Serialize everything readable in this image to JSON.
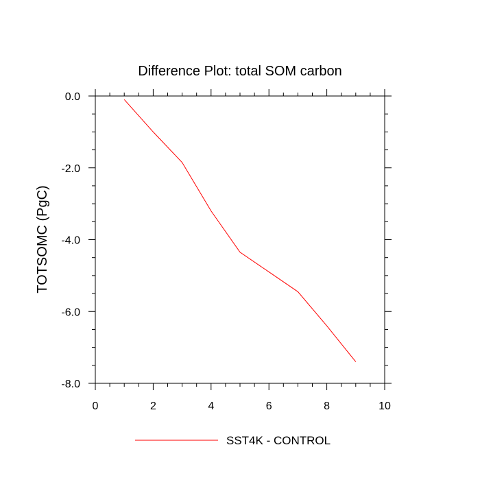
{
  "chart_data": {
    "type": "line",
    "title": "Difference Plot: total SOM carbon",
    "xlabel": "",
    "ylabel": "TOTSOMC  (PgC)",
    "xlim": [
      0,
      10
    ],
    "ylim": [
      -8.0,
      0.0
    ],
    "x_ticks": [
      0,
      2,
      4,
      6,
      8,
      10
    ],
    "x_tick_labels": [
      "0",
      "2",
      "4",
      "6",
      "8",
      "10"
    ],
    "y_ticks": [
      0.0,
      -2.0,
      -4.0,
      -6.0,
      -8.0
    ],
    "y_tick_labels": [
      "0.0",
      "-2.0",
      "-4.0",
      "-6.0",
      "-8.0"
    ],
    "legend_position": "bottom-center",
    "grid": false,
    "series": [
      {
        "name": "SST4K - CONTROL",
        "color": "#ff0000",
        "x": [
          1,
          2,
          3,
          4,
          5,
          6,
          7,
          8,
          9
        ],
        "values": [
          -0.1,
          -1.0,
          -1.85,
          -3.2,
          -4.35,
          -4.9,
          -5.45,
          -6.4,
          -7.4
        ]
      }
    ]
  }
}
